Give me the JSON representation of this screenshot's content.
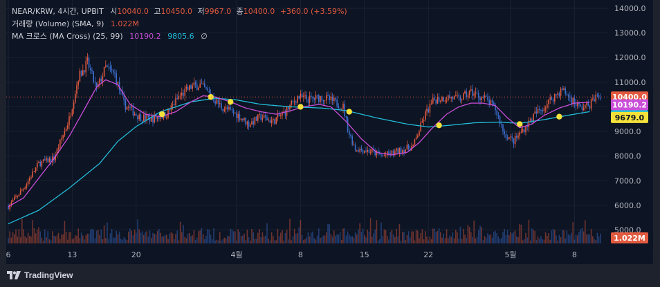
{
  "legend": {
    "symbol": "NEAR/KRW, 4시간, UPBIT",
    "o_label": "시",
    "o_value": "10040.0",
    "h_label": "고",
    "h_value": "10450.0",
    "l_label": "저",
    "l_value": "9967.0",
    "c_label": "종",
    "c_value": "10400.0",
    "change": "+360.0 (+3.59%)",
    "volume_label": "거래량 (Volume) (SMA, 9)",
    "volume_value": "1.022M",
    "ma_label": "MA 크로스 (MA Cross) (25, 99)",
    "ma_fast_value": "10190.2",
    "ma_slow_value": "9805.6",
    "ma_extra": "∅"
  },
  "price_tags": {
    "last": "10400.0",
    "ma_fast": "10190.2",
    "ma_slow": "9805.6",
    "cross": "9679.0",
    "volume": "1.022M"
  },
  "footer": {
    "brand": "TradingView"
  },
  "colors": {
    "up": "#e25a3f",
    "down": "#3b6fd0",
    "ma_fast": "#c94ed8",
    "ma_slow": "#22bcd8",
    "cross": "#f4e23a",
    "background": "#0d1423"
  },
  "chart_data": {
    "type": "candlestick",
    "symbol": "NEAR/KRW",
    "interval": "4시간",
    "exchange": "UPBIT",
    "y_ticks": [
      5000,
      6000,
      7000,
      8000,
      9000,
      10000,
      11000,
      12000,
      13000,
      14000
    ],
    "y_tick_labels": [
      "5000.0",
      "6000.0",
      "7000.0",
      "8000.0",
      "9000.0",
      "10000.0",
      "11000.0",
      "12000.0",
      "13000.0",
      "14000.0"
    ],
    "ylim": [
      4650,
      14000
    ],
    "x_ticks": [
      {
        "pos": 0,
        "label": "6"
      },
      {
        "pos": 42,
        "label": "13"
      },
      {
        "pos": 84,
        "label": "20"
      },
      {
        "pos": 150,
        "label": "4월"
      },
      {
        "pos": 192,
        "label": "8"
      },
      {
        "pos": 234,
        "label": "15"
      },
      {
        "pos": 276,
        "label": "22"
      },
      {
        "pos": 330,
        "label": "5월"
      },
      {
        "pos": 372,
        "label": "8"
      }
    ],
    "x_count": 390,
    "price_keys": [
      [
        0,
        5950
      ],
      [
        10,
        6700
      ],
      [
        20,
        7700
      ],
      [
        30,
        7900
      ],
      [
        40,
        9500
      ],
      [
        46,
        11200
      ],
      [
        52,
        11800
      ],
      [
        58,
        10700
      ],
      [
        64,
        11600
      ],
      [
        70,
        11300
      ],
      [
        76,
        10100
      ],
      [
        86,
        9600
      ],
      [
        94,
        9500
      ],
      [
        104,
        9700
      ],
      [
        112,
        10400
      ],
      [
        120,
        10800
      ],
      [
        126,
        10900
      ],
      [
        134,
        10400
      ],
      [
        140,
        10000
      ],
      [
        150,
        9700
      ],
      [
        158,
        9300
      ],
      [
        166,
        9600
      ],
      [
        174,
        9400
      ],
      [
        182,
        9800
      ],
      [
        190,
        10400
      ],
      [
        198,
        10300
      ],
      [
        206,
        10400
      ],
      [
        214,
        10200
      ],
      [
        220,
        10000
      ],
      [
        224,
        8900
      ],
      [
        228,
        8300
      ],
      [
        238,
        8200
      ],
      [
        246,
        8000
      ],
      [
        256,
        8200
      ],
      [
        266,
        8400
      ],
      [
        274,
        9700
      ],
      [
        280,
        10300
      ],
      [
        290,
        10400
      ],
      [
        296,
        10300
      ],
      [
        304,
        10600
      ],
      [
        314,
        10300
      ],
      [
        320,
        9900
      ],
      [
        326,
        8900
      ],
      [
        332,
        8600
      ],
      [
        340,
        9200
      ],
      [
        346,
        9700
      ],
      [
        352,
        10000
      ],
      [
        358,
        10400
      ],
      [
        364,
        10700
      ],
      [
        370,
        10300
      ],
      [
        376,
        9950
      ],
      [
        382,
        10100
      ],
      [
        386,
        10400
      ]
    ],
    "ma_fast_keys": [
      [
        0,
        5950
      ],
      [
        10,
        6300
      ],
      [
        20,
        7100
      ],
      [
        30,
        7900
      ],
      [
        40,
        8800
      ],
      [
        50,
        9900
      ],
      [
        58,
        10800
      ],
      [
        64,
        11100
      ],
      [
        72,
        10900
      ],
      [
        80,
        10100
      ],
      [
        90,
        9700
      ],
      [
        100,
        9600
      ],
      [
        110,
        9800
      ],
      [
        120,
        10200
      ],
      [
        128,
        10450
      ],
      [
        136,
        10400
      ],
      [
        146,
        10200
      ],
      [
        156,
        9950
      ],
      [
        166,
        9800
      ],
      [
        176,
        9700
      ],
      [
        186,
        9850
      ],
      [
        194,
        10000
      ],
      [
        204,
        10100
      ],
      [
        212,
        10000
      ],
      [
        222,
        9400
      ],
      [
        232,
        8700
      ],
      [
        242,
        8150
      ],
      [
        252,
        8050
      ],
      [
        262,
        8150
      ],
      [
        270,
        8550
      ],
      [
        278,
        9100
      ],
      [
        288,
        9700
      ],
      [
        296,
        10000
      ],
      [
        304,
        10150
      ],
      [
        312,
        10150
      ],
      [
        320,
        10050
      ],
      [
        328,
        9550
      ],
      [
        336,
        9150
      ],
      [
        344,
        9300
      ],
      [
        352,
        9650
      ],
      [
        362,
        9950
      ],
      [
        372,
        10150
      ],
      [
        382,
        10190
      ]
    ],
    "ma_slow_keys": [
      [
        0,
        5250
      ],
      [
        20,
        5800
      ],
      [
        40,
        6700
      ],
      [
        60,
        7700
      ],
      [
        72,
        8600
      ],
      [
        84,
        9200
      ],
      [
        100,
        9800
      ],
      [
        120,
        10200
      ],
      [
        136,
        10350
      ],
      [
        150,
        10280
      ],
      [
        166,
        10100
      ],
      [
        186,
        10000
      ],
      [
        206,
        9950
      ],
      [
        222,
        9850
      ],
      [
        242,
        9550
      ],
      [
        262,
        9300
      ],
      [
        276,
        9180
      ],
      [
        290,
        9250
      ],
      [
        306,
        9350
      ],
      [
        322,
        9380
      ],
      [
        336,
        9330
      ],
      [
        352,
        9480
      ],
      [
        368,
        9660
      ],
      [
        382,
        9805
      ]
    ],
    "cross_points": [
      [
        101,
        9700
      ],
      [
        133,
        10400
      ],
      [
        146,
        10200
      ],
      [
        192,
        10000
      ],
      [
        224,
        9800
      ],
      [
        283,
        9250
      ],
      [
        336,
        9300
      ],
      [
        362,
        9600
      ]
    ],
    "volume_max": 5000000,
    "volume_last": "1.022M"
  }
}
